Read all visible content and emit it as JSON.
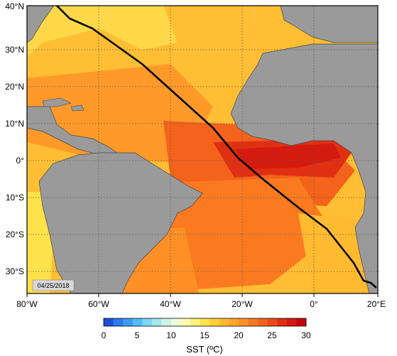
{
  "map": {
    "lon_labels": [
      "80°W",
      "60°W",
      "40°W",
      "20°W",
      "0°",
      "20°E"
    ],
    "lat_labels": [
      "40°N",
      "30°N",
      "20°N",
      "10°N",
      "0°",
      "10°S",
      "20°S",
      "30°S"
    ],
    "date_stamp": "04/25/2018",
    "track_color": "#000000",
    "land_color": "#9a9a9a"
  },
  "colorbar": {
    "ticks": [
      "0",
      "5",
      "10",
      "15",
      "20",
      "25",
      "30"
    ],
    "title": "SST (ºC)",
    "colors": [
      "#1f4fd8",
      "#2f78ee",
      "#3a9cf5",
      "#52bdf7",
      "#7dd6f5",
      "#a6e6ee",
      "#cdf2e6",
      "#eefadc",
      "#fffab0",
      "#fff27a",
      "#ffe14a",
      "#ffcf3a",
      "#ffbb30",
      "#ffa52a",
      "#ff9025",
      "#fb7a20",
      "#f4631b",
      "#ea4a17",
      "#e03013",
      "#d51a10",
      "#c8000c"
    ]
  }
}
